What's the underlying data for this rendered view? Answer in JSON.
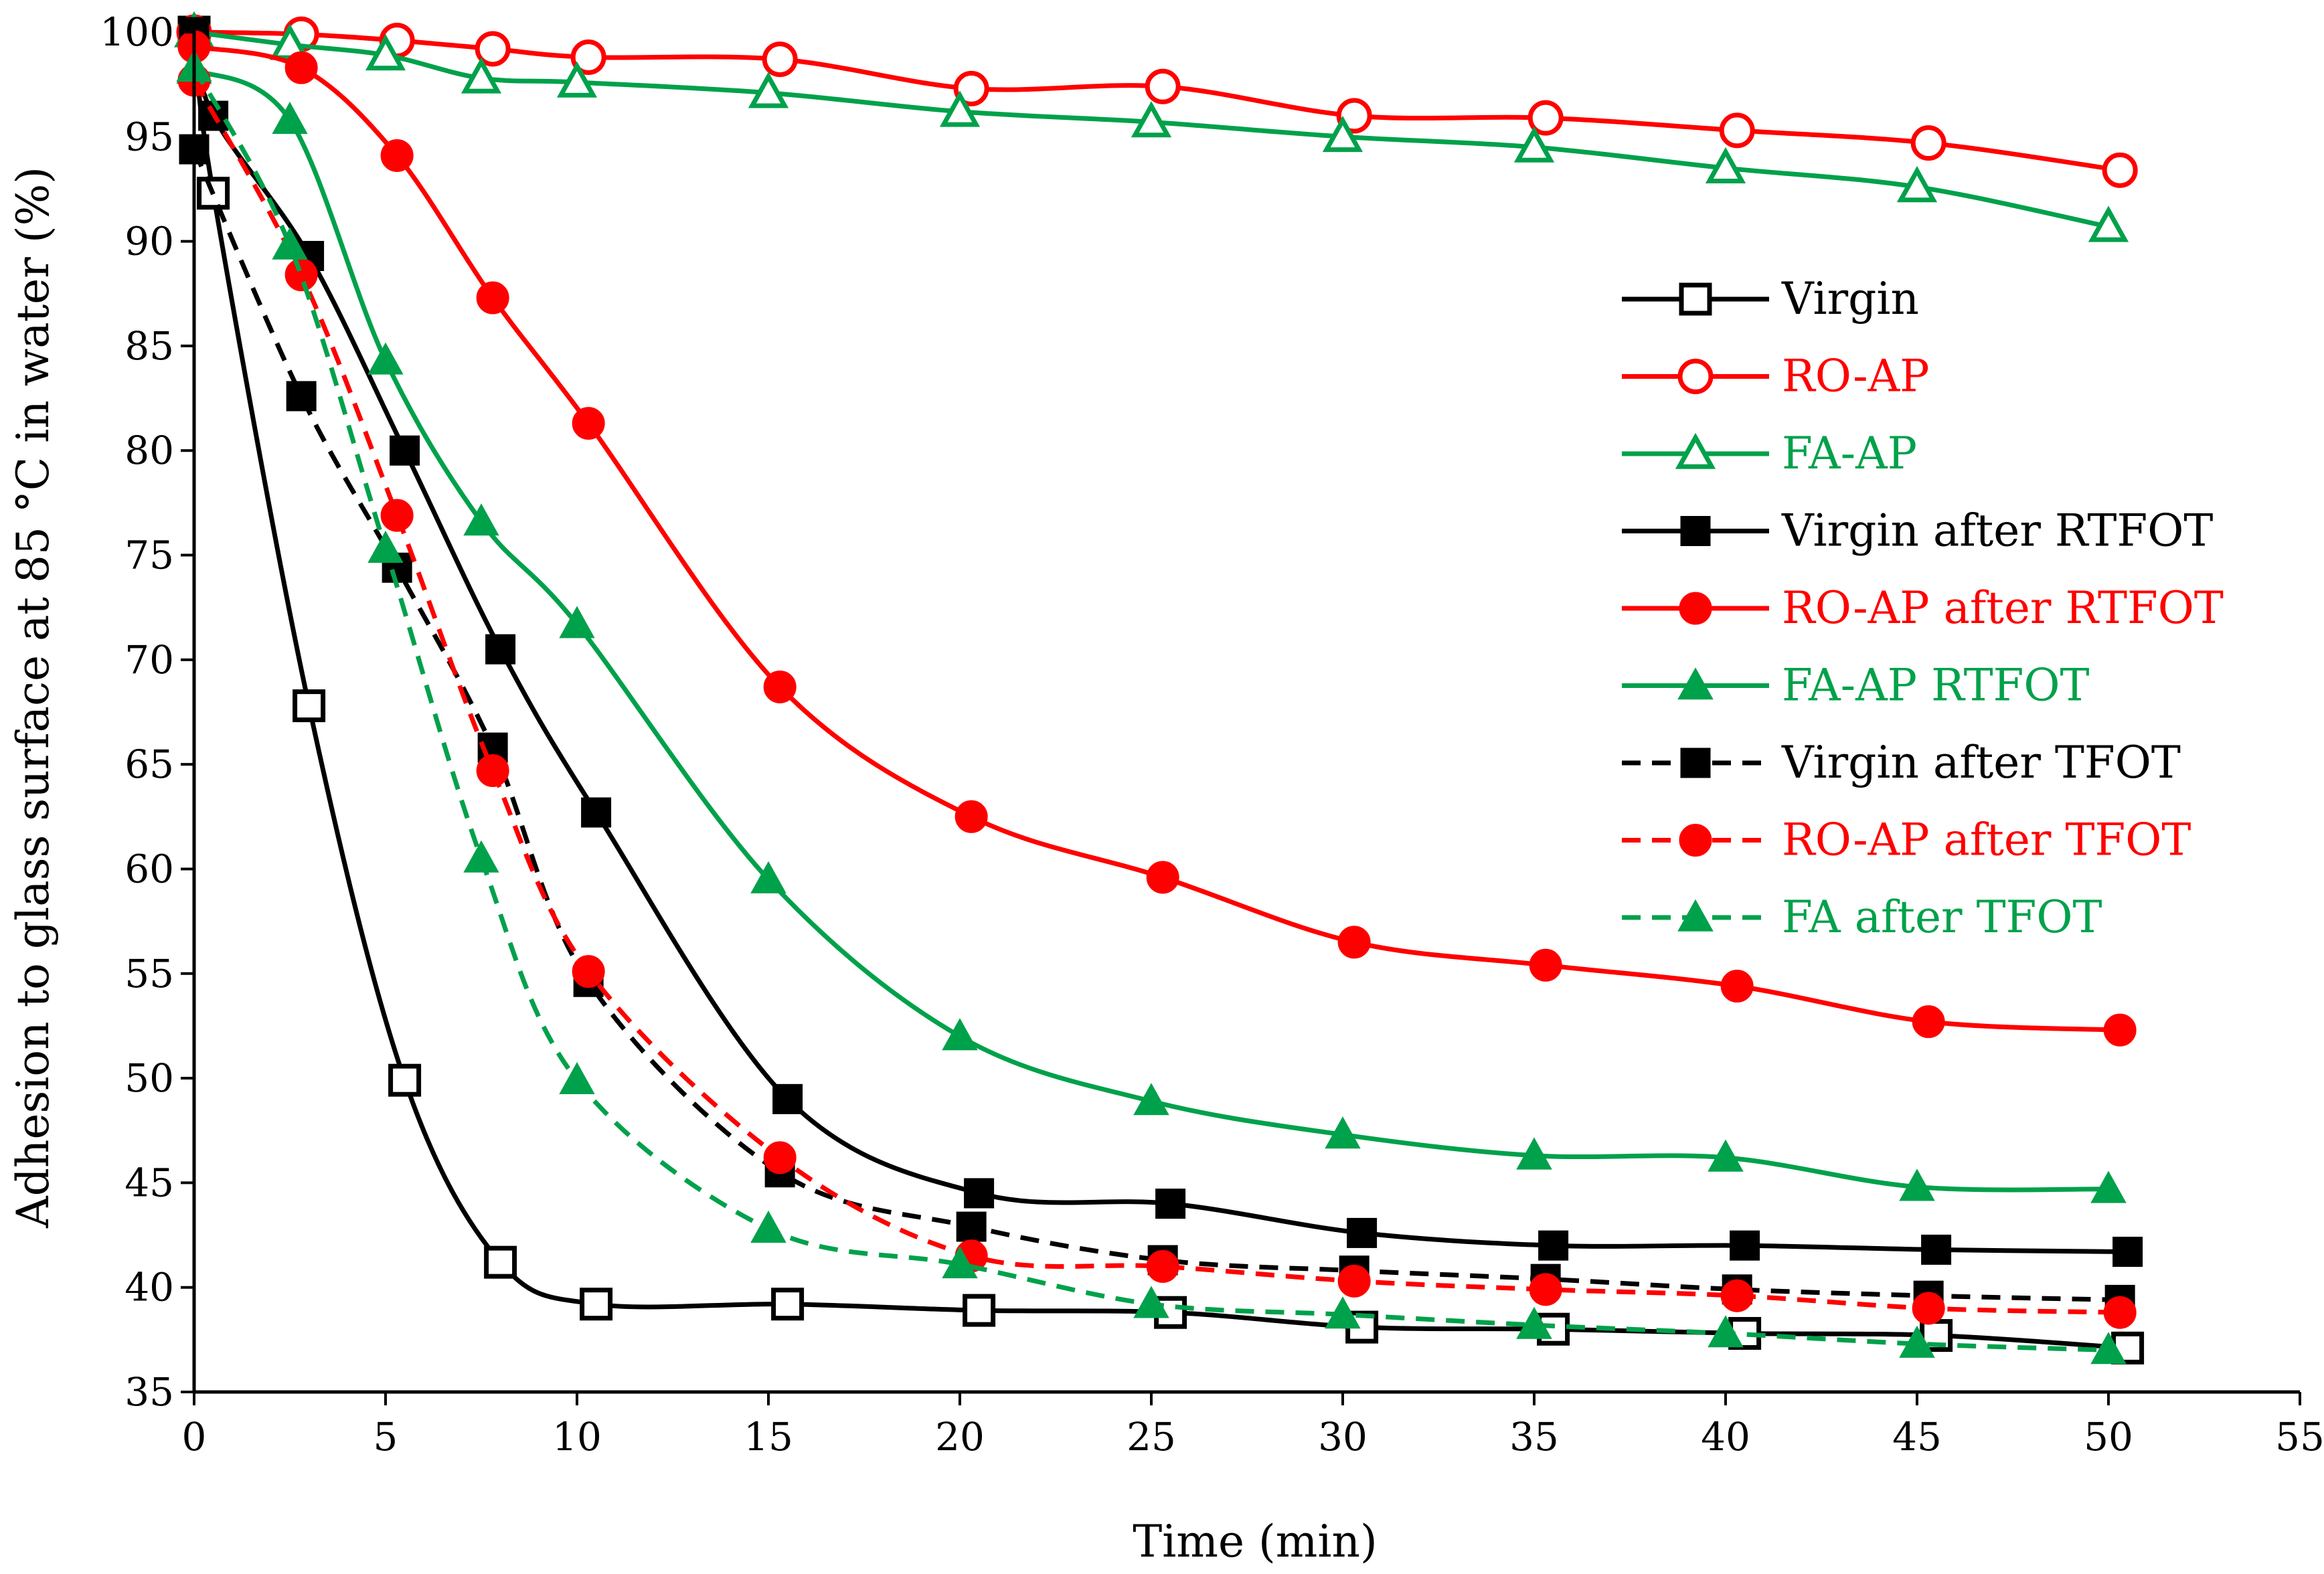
{
  "chart_data": {
    "type": "line",
    "title": "",
    "xlabel": "Time (min)",
    "ylabel": "Adhesion to glass surface at 85 °C in water  (%)",
    "xlim": [
      0,
      55
    ],
    "ylim": [
      35,
      100
    ],
    "xticks": [
      0,
      5,
      10,
      15,
      20,
      25,
      30,
      35,
      40,
      45,
      50,
      55
    ],
    "yticks": [
      35,
      40,
      45,
      50,
      55,
      60,
      65,
      70,
      75,
      80,
      85,
      90,
      95,
      100
    ],
    "grid": false,
    "legend_position": "right",
    "series": [
      {
        "name": "Virgin",
        "color": "#000000",
        "marker": "square-open",
        "dash": false,
        "x": [
          0,
          0.5,
          3,
          5.5,
          8,
          10.5,
          15.5,
          20.5,
          25.5,
          30.5,
          35.5,
          40.5,
          45.5,
          50.5
        ],
        "y": [
          100,
          92.3,
          67.8,
          49.9,
          41.2,
          39.2,
          39.2,
          38.9,
          38.8,
          38.1,
          38,
          37.8,
          37.7,
          37.1
        ]
      },
      {
        "name": "RO-AP",
        "color": "#ff0000",
        "marker": "circle-open",
        "dash": false,
        "x": [
          0,
          2.8,
          5.3,
          7.8,
          10.3,
          15.3,
          20.3,
          25.3,
          30.3,
          35.3,
          40.3,
          45.3,
          50.3
        ],
        "y": [
          100,
          99.9,
          99.6,
          99.2,
          98.8,
          98.7,
          97.3,
          97.4,
          96,
          95.9,
          95.3,
          94.7,
          93.4
        ]
      },
      {
        "name": "FA-AP",
        "color": "#00a14b",
        "marker": "triangle-open",
        "dash": false,
        "x": [
          0,
          2.5,
          5,
          7.5,
          10,
          15,
          20,
          25,
          30,
          35,
          40,
          45,
          50
        ],
        "y": [
          100,
          99.4,
          98.9,
          97.8,
          97.6,
          97.1,
          96.2,
          95.7,
          95,
          94.5,
          93.5,
          92.6,
          90.7
        ]
      },
      {
        "name": "Virgin after RTFOT",
        "color": "#000000",
        "marker": "square-filled",
        "dash": false,
        "x": [
          0,
          0.5,
          3,
          5.5,
          8,
          10.5,
          15.5,
          20.5,
          25.5,
          30.5,
          35.5,
          40.5,
          45.5,
          50.5
        ],
        "y": [
          100,
          96,
          89.3,
          80,
          70.5,
          62.7,
          49,
          44.5,
          44,
          42.6,
          42,
          42,
          41.8,
          41.7
        ]
      },
      {
        "name": "RO-AP after RTFOT",
        "color": "#ff0000",
        "marker": "circle-filled",
        "dash": false,
        "x": [
          0,
          2.8,
          5.3,
          7.8,
          10.3,
          15.3,
          20.3,
          25.3,
          30.3,
          35.3,
          40.3,
          45.3,
          50.3
        ],
        "y": [
          99.3,
          98.3,
          94.1,
          87.3,
          81.3,
          68.7,
          62.5,
          59.6,
          56.5,
          55.4,
          54.4,
          52.7,
          52.3
        ]
      },
      {
        "name": "FA-AP RTFOT",
        "color": "#00a14b",
        "marker": "triangle-filled",
        "dash": false,
        "x": [
          0,
          2.5,
          5,
          7.5,
          10,
          15,
          20,
          25,
          30,
          35,
          40,
          45,
          50
        ],
        "y": [
          98.2,
          95.8,
          84.3,
          76.6,
          71.7,
          59.5,
          52,
          48.9,
          47.3,
          46.3,
          46.2,
          44.8,
          44.7
        ]
      },
      {
        "name": "Virgin after TFOT",
        "color": "#000000",
        "marker": "square-filled",
        "dash": true,
        "x": [
          0,
          2.8,
          5.3,
          7.8,
          10.3,
          15.3,
          20.3,
          25.3,
          30.3,
          35.3,
          40.3,
          45.3,
          50.3
        ],
        "y": [
          94.4,
          82.6,
          74.4,
          65.8,
          54.6,
          45.5,
          42.9,
          41.3,
          40.8,
          40.4,
          39.9,
          39.6,
          39.4
        ]
      },
      {
        "name": "RO-AP after TFOT",
        "color": "#ff0000",
        "marker": "circle-filled",
        "dash": true,
        "x": [
          0,
          2.8,
          5.3,
          7.8,
          10.3,
          15.3,
          20.3,
          25.3,
          30.3,
          35.3,
          40.3,
          45.3,
          50.3
        ],
        "y": [
          97.7,
          88.4,
          76.9,
          64.7,
          55.1,
          46.2,
          41.5,
          41,
          40.3,
          39.9,
          39.6,
          39,
          38.8
        ]
      },
      {
        "name": "FA after TFOT",
        "color": "#00a14b",
        "marker": "triangle-filled",
        "dash": true,
        "x": [
          0,
          2.5,
          5,
          7.5,
          10,
          15,
          20,
          25,
          30,
          35,
          40,
          45,
          50
        ],
        "y": [
          98.3,
          89.8,
          75.3,
          60.5,
          49.9,
          42.8,
          41.1,
          39.2,
          38.7,
          38.2,
          37.8,
          37.3,
          37
        ]
      }
    ]
  }
}
